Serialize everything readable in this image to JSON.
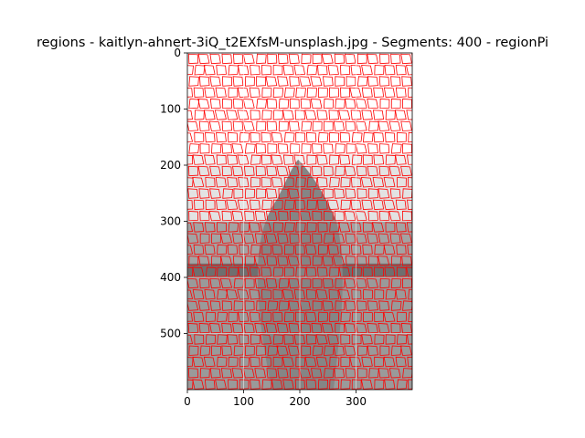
{
  "chart_data": {
    "type": "heatmap",
    "title": "regions - kaitlyn-ahnert-3iQ_t2EXfsM-unsplash.jpg - Segments: 400 - regionPi",
    "xlabel": "",
    "ylabel": "",
    "xlim": [
      0,
      400
    ],
    "ylim": [
      600,
      0
    ],
    "x_ticks": [
      0,
      100,
      200,
      300
    ],
    "y_ticks": [
      0,
      100,
      200,
      300,
      400,
      500
    ],
    "grid": true,
    "segments": 400,
    "boundary_color": "#ff0000",
    "gray_bands": [
      {
        "y": [
          0,
          180
        ],
        "shade": "#ffffff"
      },
      {
        "y": [
          180,
          200
        ],
        "shade": "#f0f0f0"
      },
      {
        "y": [
          200,
          300
        ],
        "shade": "#e3e3e3"
      },
      {
        "y": [
          300,
          375
        ],
        "shade": "#a3a3a3"
      },
      {
        "y": [
          375,
          400
        ],
        "shade": "#6f6f6f"
      },
      {
        "y": [
          400,
          600
        ],
        "shade": "#9a9a9a"
      }
    ]
  }
}
